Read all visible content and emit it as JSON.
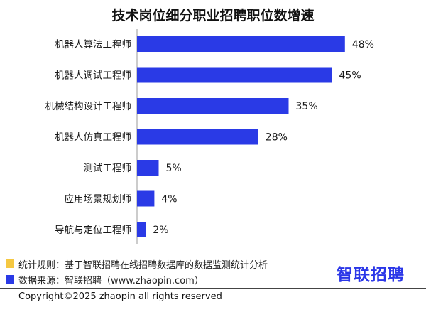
{
  "chart_data": {
    "type": "bar",
    "orientation": "horizontal",
    "title": "技术岗位细分职业招聘职位数增速",
    "categories": [
      "机器人算法工程师",
      "机器人调试工程师",
      "机械结构设计工程师",
      "机器人仿真工程师",
      "测试工程师",
      "应用场景规划师",
      "导航与定位工程师"
    ],
    "values": [
      48,
      45,
      35,
      28,
      5,
      4,
      2
    ],
    "value_labels": [
      "48%",
      "45%",
      "35%",
      "28%",
      "5%",
      "4%",
      "2%"
    ],
    "xlim": [
      0,
      50
    ],
    "bar_color": "#2a3ae6",
    "grid": false,
    "legend": "none"
  },
  "notes": [
    {
      "text": "统计规则：基于智联招聘在线招聘数据库的数据监测统计分析",
      "color": "#f5c842"
    },
    {
      "text": "数据来源：智联招聘（www.zhaopin.com）",
      "color": "#2a3ae6"
    }
  ],
  "brand": {
    "logo_text": "智联招聘",
    "color": "#2a36e8"
  },
  "footer": {
    "copyright": "Copyright©2025 zhaopin all rights reserved"
  }
}
